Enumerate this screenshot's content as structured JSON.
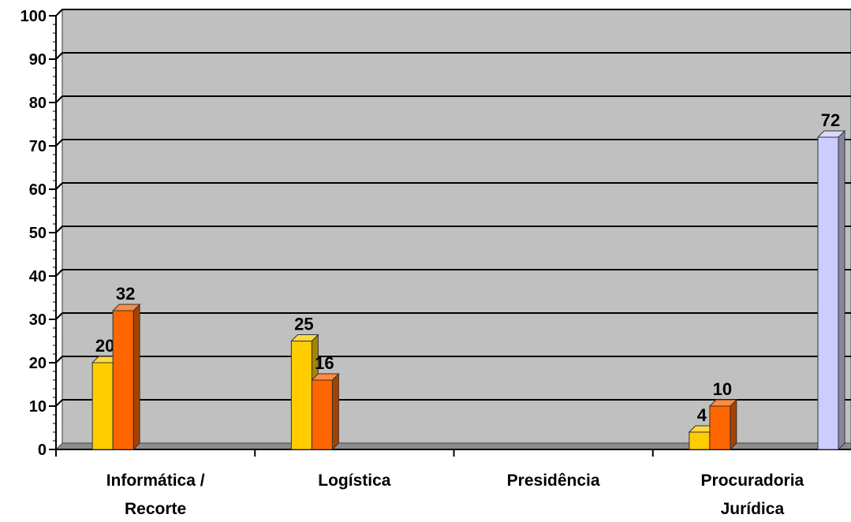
{
  "chart_data": {
    "type": "bar",
    "categories": [
      [
        "Informática /",
        "Recorte"
      ],
      [
        "Logística"
      ],
      [
        "Presidência"
      ],
      [
        "Procuradoria",
        "Jurídica"
      ],
      [
        ""
      ]
    ],
    "series": [
      {
        "values": [
          20,
          25,
          null,
          4,
          null
        ],
        "color": "#FFCC00"
      },
      {
        "values": [
          32,
          16,
          null,
          10,
          null
        ],
        "color": "#FF6600"
      },
      {
        "values": [
          null,
          null,
          null,
          null,
          72
        ],
        "color": "#CCCCFF"
      }
    ],
    "title": "",
    "xlabel": "",
    "ylabel": "",
    "ylim": [
      0,
      100
    ],
    "yticks": [
      0,
      10,
      20,
      30,
      40,
      50,
      60,
      70,
      80,
      90,
      100
    ],
    "grid": true,
    "legend": "none",
    "plot_background": "#C0C0C0"
  }
}
